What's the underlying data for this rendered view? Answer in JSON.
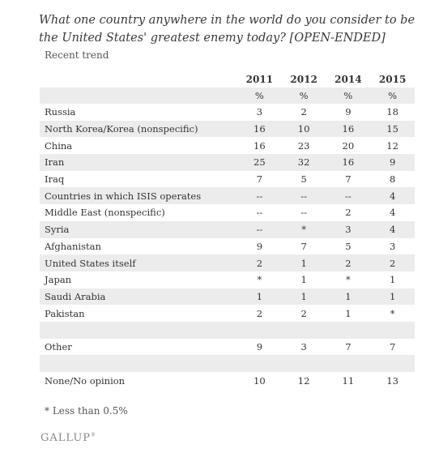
{
  "title": "What one country anywhere in the world do you consider to be the United States' greatest enemy today? [OPEN-ENDED]",
  "subtitle": "Recent trend",
  "columns": [
    "2011",
    "2012",
    "2014",
    "2015"
  ],
  "unit_row": [
    "%",
    "%",
    "%",
    "%"
  ],
  "rows": [
    {
      "label": "Russia",
      "values": [
        "3",
        "2",
        "9",
        "18"
      ]
    },
    {
      "label": "North Korea/Korea (nonspecific)",
      "values": [
        "16",
        "10",
        "16",
        "15"
      ]
    },
    {
      "label": "China",
      "values": [
        "16",
        "23",
        "20",
        "12"
      ]
    },
    {
      "label": "Iran",
      "values": [
        "25",
        "32",
        "16",
        "9"
      ]
    },
    {
      "label": "Iraq",
      "values": [
        "7",
        "5",
        "7",
        "8"
      ]
    },
    {
      "label": "Countries in which ISIS operates",
      "values": [
        "--",
        "--",
        "--",
        "4"
      ]
    },
    {
      "label": "Middle East (nonspecific)",
      "values": [
        "--",
        "--",
        "2",
        "4"
      ]
    },
    {
      "label": "Syria",
      "values": [
        "--",
        "*",
        "3",
        "4"
      ]
    },
    {
      "label": "Afghanistan",
      "values": [
        "9",
        "7",
        "5",
        "3"
      ]
    },
    {
      "label": "United States itself",
      "values": [
        "2",
        "1",
        "2",
        "2"
      ]
    },
    {
      "label": "Japan",
      "values": [
        "*",
        "1",
        "*",
        "1"
      ]
    },
    {
      "label": "Saudi Arabia",
      "values": [
        "1",
        "1",
        "1",
        "1"
      ]
    },
    {
      "label": "Pakistan",
      "values": [
        "2",
        "2",
        "1",
        "*"
      ]
    },
    {
      "label": "",
      "values": [
        "",
        "",
        "",
        ""
      ]
    },
    {
      "label": "Other",
      "values": [
        "9",
        "3",
        "7",
        "7"
      ]
    },
    {
      "label": "",
      "values": [
        "",
        "",
        "",
        ""
      ]
    },
    {
      "label": "None/No opinion",
      "values": [
        "10",
        "12",
        "11",
        "13"
      ]
    }
  ],
  "footnote": "* Less than 0.5%",
  "logo": "GALLUP",
  "logo_mark": "®"
}
